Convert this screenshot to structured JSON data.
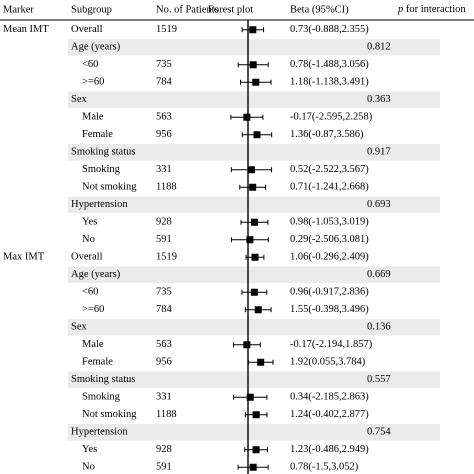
{
  "chart_data": {
    "type": "forest",
    "columns": {
      "marker": "Marker",
      "subgroup": "Subgroup",
      "n": "No. of Patients",
      "plot": "Forest plot",
      "beta": "Beta (95%CI)",
      "p_prefix": "p",
      "p_suffix": " for interaction"
    },
    "x_ticks": [
      "-5.00",
      "-2.50",
      "0.00",
      "2.50",
      "5.00"
    ],
    "xlim": [
      -5,
      5
    ],
    "reference_line": 0,
    "rows": [
      {
        "marker": "Mean IMT",
        "subgroup": "Overall",
        "n": "1519",
        "beta": 0.73,
        "lo": -0.888,
        "hi": 2.355,
        "ci": "0.73(-0.888,2.355)",
        "shaded": false
      },
      {
        "subgroup": "Age (years)",
        "header": true,
        "p": "0.812",
        "shaded": true
      },
      {
        "subgroup": "<60",
        "indent": true,
        "n": "735",
        "beta": 0.78,
        "lo": -1.488,
        "hi": 3.056,
        "ci": "0.78(-1.488,3.056)",
        "shaded": false
      },
      {
        "subgroup": ">=60",
        "indent": true,
        "n": "784",
        "beta": 1.18,
        "lo": -1.138,
        "hi": 3.491,
        "ci": "1.18(-1.138,3.491)",
        "shaded": false
      },
      {
        "subgroup": "Sex",
        "header": true,
        "p": "0.363",
        "shaded": true
      },
      {
        "subgroup": "Male",
        "indent": true,
        "n": "563",
        "beta": -0.17,
        "lo": -2.595,
        "hi": 2.258,
        "ci": "-0.17(-2.595,2.258)",
        "shaded": false
      },
      {
        "subgroup": "Female",
        "indent": true,
        "n": "956",
        "beta": 1.36,
        "lo": -0.87,
        "hi": 3.586,
        "ci": "1.36(-0.87,3.586)",
        "shaded": false
      },
      {
        "subgroup": "Smoking status",
        "header": true,
        "p": "0.917",
        "shaded": true
      },
      {
        "subgroup": "Smoking",
        "indent": true,
        "n": "331",
        "beta": 0.52,
        "lo": -2.522,
        "hi": 3.567,
        "ci": "0.52(-2.522,3.567)",
        "shaded": false
      },
      {
        "subgroup": "Not smoking",
        "indent": true,
        "n": "1188",
        "beta": 0.71,
        "lo": -1.241,
        "hi": 2.668,
        "ci": "0.71(-1.241,2.668)",
        "shaded": false
      },
      {
        "subgroup": "Hypertension",
        "header": true,
        "p": "0.693",
        "shaded": true
      },
      {
        "subgroup": "Yes",
        "indent": true,
        "n": "928",
        "beta": 0.98,
        "lo": -1.053,
        "hi": 3.019,
        "ci": "0.98(-1.053,3.019)",
        "shaded": false
      },
      {
        "subgroup": "No",
        "indent": true,
        "n": "591",
        "beta": 0.29,
        "lo": -2.506,
        "hi": 3.081,
        "ci": "0.29(-2.506,3.081)",
        "shaded": false
      },
      {
        "marker": "Max IMT",
        "subgroup": "Overall",
        "n": "1519",
        "beta": 1.06,
        "lo": -0.296,
        "hi": 2.409,
        "ci": "1.06(-0.296,2.409)",
        "shaded": false
      },
      {
        "subgroup": "Age (years)",
        "header": true,
        "p": "0.669",
        "shaded": true
      },
      {
        "subgroup": "<60",
        "indent": true,
        "n": "735",
        "beta": 0.96,
        "lo": -0.917,
        "hi": 2.836,
        "ci": "0.96(-0.917,2.836)",
        "shaded": false
      },
      {
        "subgroup": ">=60",
        "indent": true,
        "n": "784",
        "beta": 1.55,
        "lo": -0.398,
        "hi": 3.496,
        "ci": "1.55(-0.398,3.496)",
        "shaded": false
      },
      {
        "subgroup": "Sex",
        "header": true,
        "p": "0.136",
        "shaded": true
      },
      {
        "subgroup": "Male",
        "indent": true,
        "n": "563",
        "beta": -0.17,
        "lo": -2.194,
        "hi": 1.857,
        "ci": "-0.17(-2.194,1.857)",
        "shaded": false
      },
      {
        "subgroup": "Female",
        "indent": true,
        "n": "956",
        "beta": 1.92,
        "lo": 0.055,
        "hi": 3.784,
        "ci": "1.92(0.055,3.784)",
        "shaded": false
      },
      {
        "subgroup": "Smoking status",
        "header": true,
        "p": "0.557",
        "shaded": true
      },
      {
        "subgroup": "Smoking",
        "indent": true,
        "n": "331",
        "beta": 0.34,
        "lo": -2.185,
        "hi": 2.863,
        "ci": "0.34(-2.185,2.863)",
        "shaded": false
      },
      {
        "subgroup": "Not smoking",
        "indent": true,
        "n": "1188",
        "beta": 1.24,
        "lo": -0.402,
        "hi": 2.877,
        "ci": "1.24(-0.402,2.877)",
        "shaded": false
      },
      {
        "subgroup": "Hypertension",
        "header": true,
        "p": "0.754",
        "shaded": true
      },
      {
        "subgroup": "Yes",
        "indent": true,
        "n": "928",
        "beta": 1.23,
        "lo": -0.486,
        "hi": 2.949,
        "ci": "1.23(-0.486,2.949)",
        "shaded": false
      },
      {
        "subgroup": "No",
        "indent": true,
        "n": "591",
        "beta": 0.78,
        "lo": -1.5,
        "hi": 3.052,
        "ci": "0.78(-1.5,3.052)",
        "shaded": false
      }
    ],
    "colors": {
      "shade": "#ebebeb",
      "marker": "#000000",
      "line": "#000000"
    }
  }
}
